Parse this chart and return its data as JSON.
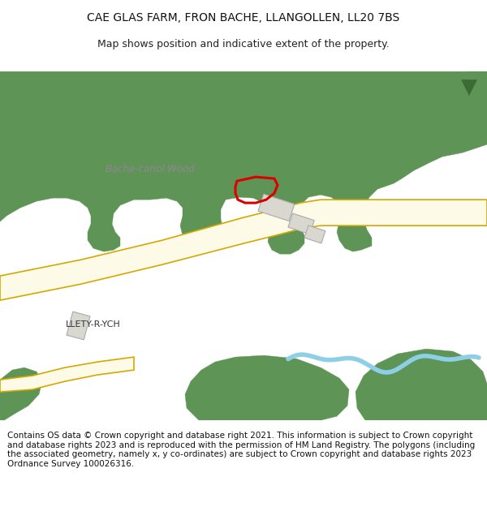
{
  "title_line1": "CAE GLAS FARM, FRON BACHE, LLANGOLLEN, LL20 7BS",
  "title_line2": "Map shows position and indicative extent of the property.",
  "footer": "Contains OS data © Crown copyright and database right 2021. This information is subject to Crown copyright and database rights 2023 and is reproduced with the permission of HM Land Registry. The polygons (including the associated geometry, namely x, y co-ordinates) are subject to Crown copyright and database rights 2023 Ordnance Survey 100026316.",
  "bg_color": "#ffffff",
  "map_bg": "#ffffff",
  "road_fill": "#fdfbe8",
  "road_edge": "#d4a800",
  "green_fill": "#5e9455",
  "water_color": "#8ecfe8",
  "building_fill": "#d8d7d0",
  "building_edge": "#aaaaaa",
  "plot_edge": "#dd0000",
  "label_wood_color": "#888888",
  "label_llety_color": "#333333",
  "figsize": [
    6.0,
    6.25
  ],
  "dpi": 100,
  "title_fontsize": 10,
  "subtitle_fontsize": 9,
  "footer_fontsize": 7.5
}
